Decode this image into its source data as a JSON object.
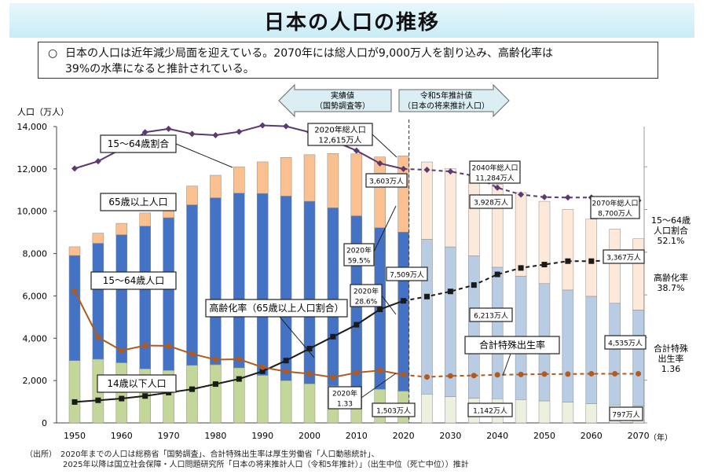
{
  "title": "日本の人口の推移",
  "summary": {
    "bullet": "○",
    "line1": "日本の人口は近年減少局面を迎えている。2070年には総人口が9,000万人を割り込み、高齢化率は",
    "line2": "39%の水準になると推計されている。"
  },
  "header_arrows": {
    "actual": [
      "実績値",
      "（国勢調査等）"
    ],
    "projection": [
      "令和5年推計値",
      "（日本の将来推計人口）"
    ]
  },
  "footnote": {
    "line1": "（出所）　2020年までの人口は総務省「国勢調査」、合計特殊出生率は厚生労働省「人口動態統計」、",
    "line2": "2025年以降は国立社会保障・人口問題研究所「日本の将来推計人口（令和5年推計）」（出生中位（死亡中位））推計"
  },
  "colors": {
    "age0_14": "#c4d79b",
    "age15_64": "#4472c4",
    "age65": "#fac090",
    "age0_14_proj": "#ebf1de",
    "age15_64_proj": "#b8cce4",
    "age65_proj": "#fde9d9",
    "line_working_share": "#5b3a71",
    "line_aging_rate": "#1a1a1a",
    "line_fertility": "#b05a1e",
    "divider": "#444444"
  },
  "chart_data": {
    "type": "bar",
    "subtype": "stacked bar with line overlays",
    "ylabel": "人口（万人）",
    "xlabel": "（年）",
    "ylim": [
      0,
      14000
    ],
    "yticks": [
      "0",
      "2,000",
      "4,000",
      "6,000",
      "8,000",
      "10,000",
      "12,000",
      "14,000"
    ],
    "xticks": [
      "1950",
      "1960",
      "1970",
      "1980",
      "1990",
      "2000",
      "2010",
      "2020",
      "2030",
      "2040",
      "2050",
      "2060",
      "2070"
    ],
    "grid": false,
    "categories": [
      "1950",
      "1955",
      "1960",
      "1965",
      "1970",
      "1975",
      "1980",
      "1985",
      "1990",
      "1995",
      "2000",
      "2005",
      "2010",
      "2015",
      "2020",
      "2025",
      "2030",
      "2035",
      "2040",
      "2045",
      "2050",
      "2055",
      "2060",
      "2065",
      "2070"
    ],
    "projection_from": "2025",
    "series": [
      {
        "name": "14歳以下人口",
        "values": [
          2943,
          3012,
          2843,
          2553,
          2482,
          2722,
          2751,
          2603,
          2249,
          2001,
          1847,
          1752,
          1680,
          1589,
          1503,
          1363,
          1240,
          1169,
          1142,
          1103,
          1041,
          977,
          904,
          842,
          797
        ]
      },
      {
        "name": "15～64歳人口",
        "values": [
          4966,
          5473,
          6047,
          6744,
          7212,
          7581,
          7883,
          8251,
          8590,
          8716,
          8622,
          8409,
          8103,
          7629,
          7509,
          7310,
          7076,
          6722,
          6213,
          5832,
          5540,
          5302,
          5078,
          4809,
          4535
        ]
      },
      {
        "name": "65歳以上人口",
        "values": [
          412,
          479,
          540,
          624,
          739,
          887,
          1065,
          1247,
          1493,
          1826,
          2201,
          2567,
          2925,
          3347,
          3603,
          3653,
          3696,
          3773,
          3928,
          3945,
          3888,
          3807,
          3644,
          3506,
          3367
        ]
      }
    ],
    "lines": [
      {
        "name": "15～64歳割合",
        "axis": "right",
        "values": [
          59.6,
          61.3,
          64.2,
          68.1,
          68.9,
          67.7,
          67.4,
          68.2,
          69.7,
          69.5,
          68.1,
          66.1,
          63.8,
          60.8,
          59.5,
          59.3,
          58.9,
          57.9,
          55.1,
          53.5,
          52.9,
          52.8,
          52.8,
          52.3,
          52.1
        ]
      },
      {
        "name": "高齢化率（65歳以上人口割合）",
        "axis": "right",
        "values": [
          4.9,
          5.3,
          5.7,
          6.3,
          7.1,
          7.9,
          9.1,
          10.3,
          12.1,
          14.6,
          17.4,
          20.2,
          23.0,
          26.6,
          28.6,
          29.6,
          30.8,
          32.3,
          34.8,
          36.3,
          37.1,
          37.9,
          37.9,
          38.1,
          38.7
        ]
      },
      {
        "name": "合計特殊出生率",
        "axis": "right",
        "values": [
          3.65,
          2.37,
          2.0,
          2.14,
          2.13,
          1.91,
          1.75,
          1.76,
          1.54,
          1.42,
          1.36,
          1.26,
          1.39,
          1.45,
          1.33,
          1.27,
          1.3,
          1.31,
          1.33,
          1.34,
          1.35,
          1.35,
          1.36,
          1.36,
          1.36
        ]
      }
    ],
    "labels": {
      "legend_working_share": "15～64歳割合",
      "legend_aged": "65歳以上人口",
      "legend_working": "15～64歳人口",
      "legend_children": "14歳以下人口",
      "legend_aging": "高齢化率（65歳以上人口割合）",
      "legend_fertility": "合計特殊出生率",
      "total2020": [
        "2020年総人口",
        "12,615万人"
      ],
      "total2040": [
        "2040年総人口",
        "11,284万人"
      ],
      "total2070": [
        "2070年総人口",
        "8,700万人"
      ],
      "v2020_aged": "3,603万人",
      "v2020_working": "7,509万人",
      "v2020_children": "1,503万人",
      "v2040_aged": "3,928万人",
      "v2040_working": "6,213万人",
      "v2040_children": "1,142万人",
      "v2070_aged": "3,367万人",
      "v2070_working": "4,535万人",
      "v2070_children": "797万人",
      "share2020": [
        "2020年",
        "59.5%"
      ],
      "aging2020": [
        "2020年",
        "28.6%"
      ],
      "fert2020": [
        "2020年",
        "1.33"
      ],
      "right_share": [
        "15～64歳",
        "人口割合",
        "52.1%"
      ],
      "right_aging": [
        "高齢化率",
        "38.7%"
      ],
      "right_fert": [
        "合計特殊",
        "出生率",
        "1.36"
      ]
    }
  }
}
